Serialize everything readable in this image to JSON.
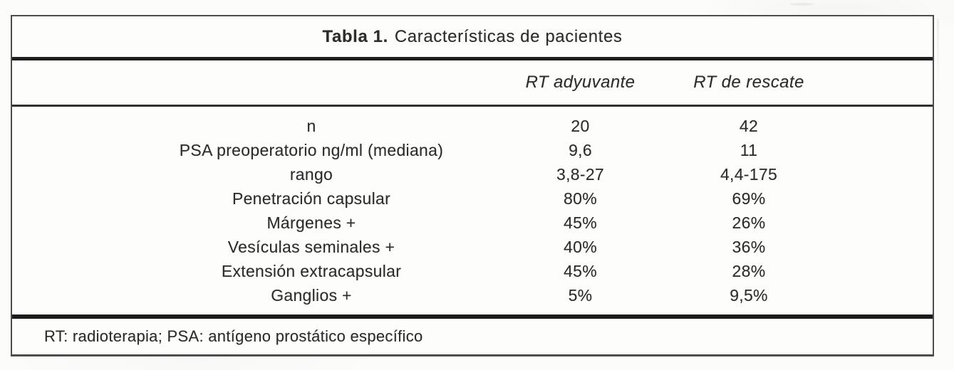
{
  "table": {
    "title": {
      "bold": "Tabla 1.",
      "rest": "Características de pacientes"
    },
    "columns": {
      "col1": "RT adyuvante",
      "col2": "RT de rescate"
    },
    "rows": [
      {
        "label": "n",
        "col1": "20",
        "col2": "42"
      },
      {
        "label": "PSA preoperatorio ng/ml (mediana)",
        "col1": "9,6",
        "col2": "11"
      },
      {
        "label": "rango",
        "col1": "3,8-27",
        "col2": "4,4-175"
      },
      {
        "label": "Penetración capsular",
        "col1": "80%",
        "col2": "69%"
      },
      {
        "label": "Márgenes +",
        "col1": "45%",
        "col2": "26%"
      },
      {
        "label": "Vesículas seminales +",
        "col1": "40%",
        "col2": "36%"
      },
      {
        "label": "Extensión extracapsular",
        "col1": "45%",
        "col2": "28%"
      },
      {
        "label": "Ganglios +",
        "col1": "5%",
        "col2": "9,5%"
      }
    ],
    "footnote": "RT: radioterapia; PSA: antígeno prostático específico"
  },
  "colors": {
    "text": "#2d2d2d",
    "border": "#4d4d4d",
    "rule_heavy": "#1e1e1e",
    "rule_medium": "#303030",
    "background": "#fcfcfb"
  }
}
